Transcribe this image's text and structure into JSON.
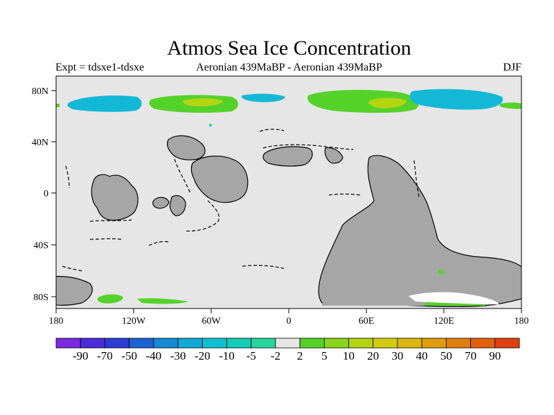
{
  "title": "Atmos Sea Ice Concentration",
  "subtitle_left": "Expt = tdsxe1-tdsxe",
  "subtitle_center": "Aeronian 439MaBP - Aeronian 439MaBP",
  "subtitle_right": "DJF",
  "y_ticks": [
    "80N",
    "40N",
    "0",
    "40S",
    "80S"
  ],
  "x_ticks": [
    "180",
    "120W",
    "60W",
    "0",
    "60E",
    "120E",
    "180"
  ],
  "colorbar": {
    "colors": [
      "#7b2ae0",
      "#4a2bd8",
      "#2d3bd6",
      "#1a62d4",
      "#1689d6",
      "#12a9d6",
      "#10bfd2",
      "#12cdb8",
      "#26d49c",
      "#e6e6e6",
      "#55d22a",
      "#8ad41c",
      "#b4d412",
      "#d2cc10",
      "#dcb60e",
      "#e09c0c",
      "#e07e0c",
      "#e0600e",
      "#e04010"
    ],
    "labels": [
      "-90",
      "-70",
      "-50",
      "-40",
      "-30",
      "-20",
      "-10",
      "-5",
      "-2",
      "2",
      "5",
      "10",
      "20",
      "30",
      "40",
      "50",
      "70",
      "90"
    ]
  },
  "colors": {
    "ocean_bg": "#e6e6e6",
    "land": "#a6a6a6",
    "ice_green": "#55d22a",
    "ice_yellow_green": "#b4d412",
    "ice_cyan": "#12b8d6",
    "ice_teal": "#12cdb8"
  }
}
